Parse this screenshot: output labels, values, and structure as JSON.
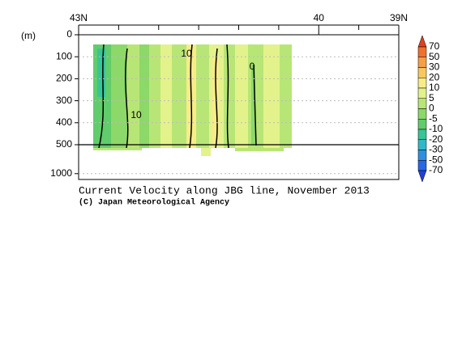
{
  "chart_data": {
    "type": "contour",
    "title": "Current Velocity along JBG line, November 2013",
    "subtitle": "(C) Japan Meteorological Agency",
    "y_label": "(m)",
    "xlim": [
      43,
      39
    ],
    "xticks": [
      {
        "value": 43,
        "label": "43N"
      },
      40,
      {
        "value": 39,
        "label": "39N"
      }
    ],
    "xminorticks": [
      42.5,
      42,
      41.5,
      41,
      40.5,
      39.5
    ],
    "ylim": [
      0,
      1150
    ],
    "yticks": [
      0,
      100,
      200,
      300,
      400,
      500,
      1000
    ],
    "grid": true,
    "annotations": [
      "10",
      "0",
      "10"
    ],
    "colorbar": {
      "levels": [
        70,
        50,
        30,
        20,
        10,
        5,
        0,
        -5,
        -10,
        -20,
        -30,
        -50,
        -70
      ],
      "colors": [
        "#e04020",
        "#f07030",
        "#f5a048",
        "#f8c860",
        "#f8ec88",
        "#e4f28c",
        "#b8e676",
        "#8cd868",
        "#60cc6c",
        "#38c496",
        "#30b8c8",
        "#3090e0",
        "#2868e4",
        "#2040d8"
      ]
    }
  }
}
